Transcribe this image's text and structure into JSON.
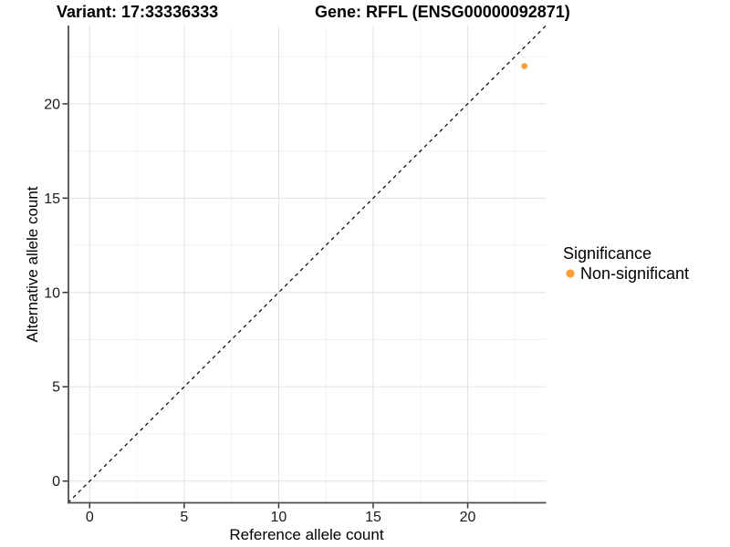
{
  "header": {
    "variant_title": "Variant: 17:33336333",
    "gene_title": "Gene: RFFL (ENSG00000092871)"
  },
  "chart_data": {
    "type": "scatter",
    "xlabel": "Reference allele count",
    "ylabel": "Alternative allele count",
    "xlim": [
      -1.15,
      24.15
    ],
    "ylim": [
      -1.15,
      24.15
    ],
    "xticks": [
      0,
      5,
      10,
      15,
      20
    ],
    "yticks": [
      0,
      5,
      10,
      15,
      20
    ],
    "minor_xticks": [
      2.5,
      7.5,
      12.5,
      17.5,
      22.5
    ],
    "minor_yticks": [
      2.5,
      7.5,
      12.5,
      17.5,
      22.5
    ],
    "grid": "major+minor",
    "reference_line": {
      "kind": "identity y=x",
      "dashed": true,
      "color": "#000000"
    },
    "series": [
      {
        "name": "Non-significant",
        "color": "#F9A03C",
        "point_radius": 3.4,
        "points": [
          {
            "x": 23,
            "y": 22
          }
        ]
      }
    ],
    "legend": {
      "title": "Significance",
      "position": "right",
      "items": [
        {
          "label": "Non-significant",
          "color": "#F9A03C"
        }
      ]
    }
  },
  "style": {
    "background": "#FFFFFF",
    "grid_major_color": "#E3E3E3",
    "grid_minor_color": "#F0F0F0",
    "axis_line_color": "#4D4D4D",
    "tick_mark_color": "#333333"
  }
}
